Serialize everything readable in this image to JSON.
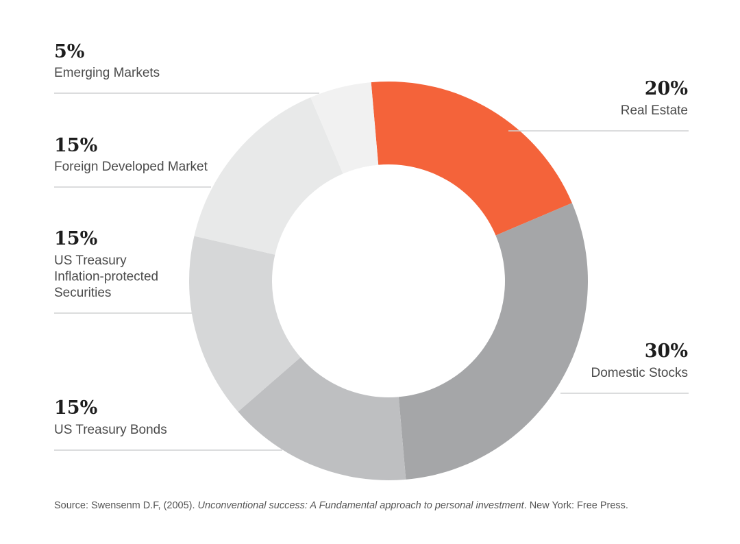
{
  "chart_data": {
    "type": "pie",
    "variant": "donut",
    "slices": [
      {
        "label": "Real Estate",
        "value": 20,
        "value_label": "20%",
        "color": "#f4633a"
      },
      {
        "label": "Domestic Stocks",
        "value": 30,
        "value_label": "30%",
        "color": "#a5a6a8"
      },
      {
        "label": "US Treasury Bonds",
        "value": 15,
        "value_label": "15%",
        "color": "#bebfc1"
      },
      {
        "label": "US Treasury Inflation-protected Securities",
        "label_lines": [
          "US Treasury",
          "Inflation-protected",
          "Securities"
        ],
        "value": 15,
        "value_label": "15%",
        "color": "#d6d7d8"
      },
      {
        "label": "Foreign Developed Market",
        "value": 15,
        "value_label": "15%",
        "color": "#e8e9e9"
      },
      {
        "label": "Emerging Markets",
        "value": 5,
        "value_label": "5%",
        "color": "#f1f1f1"
      }
    ],
    "legend": "labels beside chart with divider rules"
  },
  "source": {
    "prefix": "Source: Swensenm D.F, (2005). ",
    "title": "Unconventional success: A Fundamental approach to personal investment",
    "suffix": ". New York: Free Press."
  }
}
